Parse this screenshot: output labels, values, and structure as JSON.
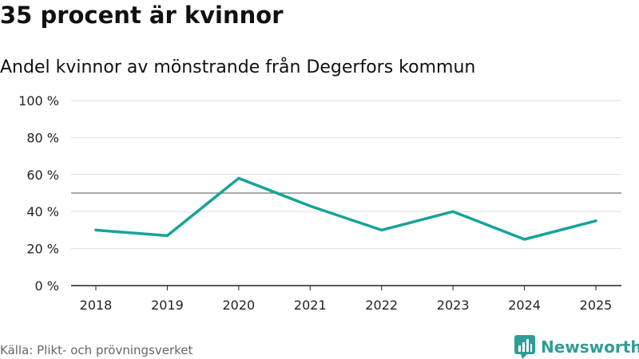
{
  "header": {
    "title": "35 procent är kvinnor",
    "subtitle": "Andel kvinnor av mönstrande från Degerfors kommun"
  },
  "footer": {
    "source": "Källa: Plikt- och prövningsverket",
    "brand": "Newsworthy",
    "brand_icon": "bar-chart-logo-icon"
  },
  "colors": {
    "line": "#17a398",
    "reference_line": "#777777",
    "grid": "#dddddd",
    "brand": "#2e9e96"
  },
  "chart_data": {
    "type": "line",
    "title": "Andel kvinnor av mönstrande från Degerfors kommun",
    "xlabel": "",
    "ylabel": "",
    "categories": [
      "2018",
      "2019",
      "2020",
      "2021",
      "2022",
      "2023",
      "2024",
      "2025"
    ],
    "series": [
      {
        "name": "Andel kvinnor",
        "values": [
          30,
          27,
          58,
          43,
          30,
          40,
          25,
          35
        ]
      }
    ],
    "reference_line": 50,
    "ylim": [
      0,
      100
    ],
    "yticks": [
      0,
      20,
      40,
      60,
      80,
      100
    ],
    "ytick_labels": [
      "0 %",
      "20 %",
      "40 %",
      "60 %",
      "80 %",
      "100 %"
    ],
    "grid": true,
    "legend": "none"
  }
}
